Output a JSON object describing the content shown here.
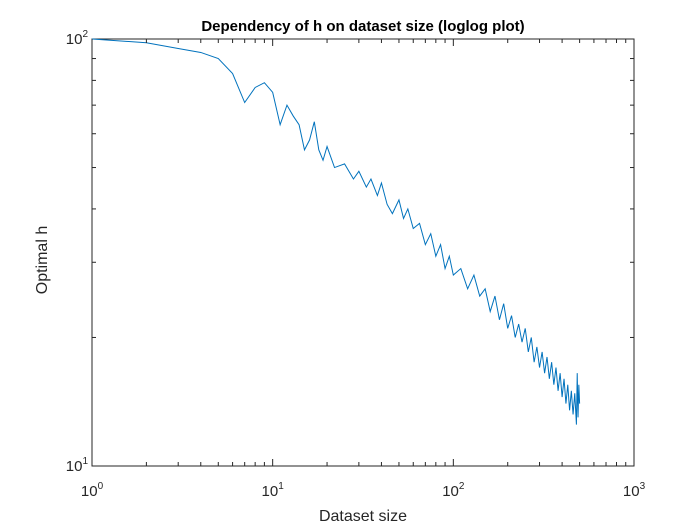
{
  "chart_data": {
    "type": "line",
    "title": "Dependency of h on dataset size (loglog plot)",
    "xlabel": "Dataset size",
    "ylabel": "Optimal h",
    "xscale": "log",
    "yscale": "log",
    "xlim": [
      1,
      1000
    ],
    "ylim": [
      10,
      100
    ],
    "grid": false,
    "legend": "none",
    "x_ticks": [
      {
        "base": "10",
        "exp": "0",
        "value": 1
      },
      {
        "base": "10",
        "exp": "1",
        "value": 10
      },
      {
        "base": "10",
        "exp": "2",
        "value": 100
      },
      {
        "base": "10",
        "exp": "3",
        "value": 1000
      }
    ],
    "y_ticks": [
      {
        "base": "10",
        "exp": "1",
        "value": 10
      },
      {
        "base": "10",
        "exp": "2",
        "value": 100
      }
    ],
    "series": [
      {
        "color": "#0072bd",
        "points": [
          [
            1,
            100
          ],
          [
            2,
            98
          ],
          [
            3,
            95
          ],
          [
            4,
            93
          ],
          [
            5,
            90
          ],
          [
            6,
            83
          ],
          [
            7,
            71
          ],
          [
            8,
            77
          ],
          [
            9,
            79
          ],
          [
            10,
            75
          ],
          [
            11,
            63
          ],
          [
            12,
            70
          ],
          [
            13,
            66
          ],
          [
            14,
            63
          ],
          [
            15,
            55
          ],
          [
            16,
            58
          ],
          [
            17,
            64
          ],
          [
            18,
            55
          ],
          [
            19,
            52
          ],
          [
            20,
            56
          ],
          [
            22,
            50
          ],
          [
            25,
            51
          ],
          [
            28,
            47
          ],
          [
            30,
            49
          ],
          [
            33,
            45
          ],
          [
            35,
            47
          ],
          [
            38,
            43
          ],
          [
            40,
            46
          ],
          [
            43,
            41
          ],
          [
            46,
            39
          ],
          [
            50,
            42
          ],
          [
            53,
            38
          ],
          [
            56,
            40
          ],
          [
            60,
            36
          ],
          [
            65,
            37
          ],
          [
            70,
            33
          ],
          [
            75,
            35
          ],
          [
            80,
            31
          ],
          [
            85,
            33
          ],
          [
            90,
            29
          ],
          [
            95,
            31
          ],
          [
            100,
            28
          ],
          [
            110,
            29
          ],
          [
            120,
            26
          ],
          [
            130,
            28
          ],
          [
            140,
            25
          ],
          [
            150,
            26
          ],
          [
            160,
            23
          ],
          [
            170,
            25
          ],
          [
            180,
            22
          ],
          [
            190,
            24
          ],
          [
            200,
            21
          ],
          [
            210,
            22.5
          ],
          [
            220,
            20
          ],
          [
            230,
            21.5
          ],
          [
            240,
            19.5
          ],
          [
            250,
            21
          ],
          [
            260,
            18.5
          ],
          [
            270,
            20
          ],
          [
            280,
            17.5
          ],
          [
            290,
            19
          ],
          [
            300,
            17
          ],
          [
            310,
            18.5
          ],
          [
            320,
            16.5
          ],
          [
            330,
            18
          ],
          [
            340,
            16
          ],
          [
            350,
            17.5
          ],
          [
            360,
            15.5
          ],
          [
            370,
            17
          ],
          [
            380,
            15
          ],
          [
            390,
            16.5
          ],
          [
            400,
            14.5
          ],
          [
            410,
            16
          ],
          [
            420,
            14
          ],
          [
            430,
            15.5
          ],
          [
            440,
            13.5
          ],
          [
            450,
            15
          ],
          [
            460,
            13.2
          ],
          [
            470,
            14.8
          ],
          [
            480,
            12.5
          ],
          [
            485,
            16.5
          ],
          [
            490,
            13
          ],
          [
            495,
            15.5
          ],
          [
            500,
            14
          ]
        ]
      }
    ]
  }
}
